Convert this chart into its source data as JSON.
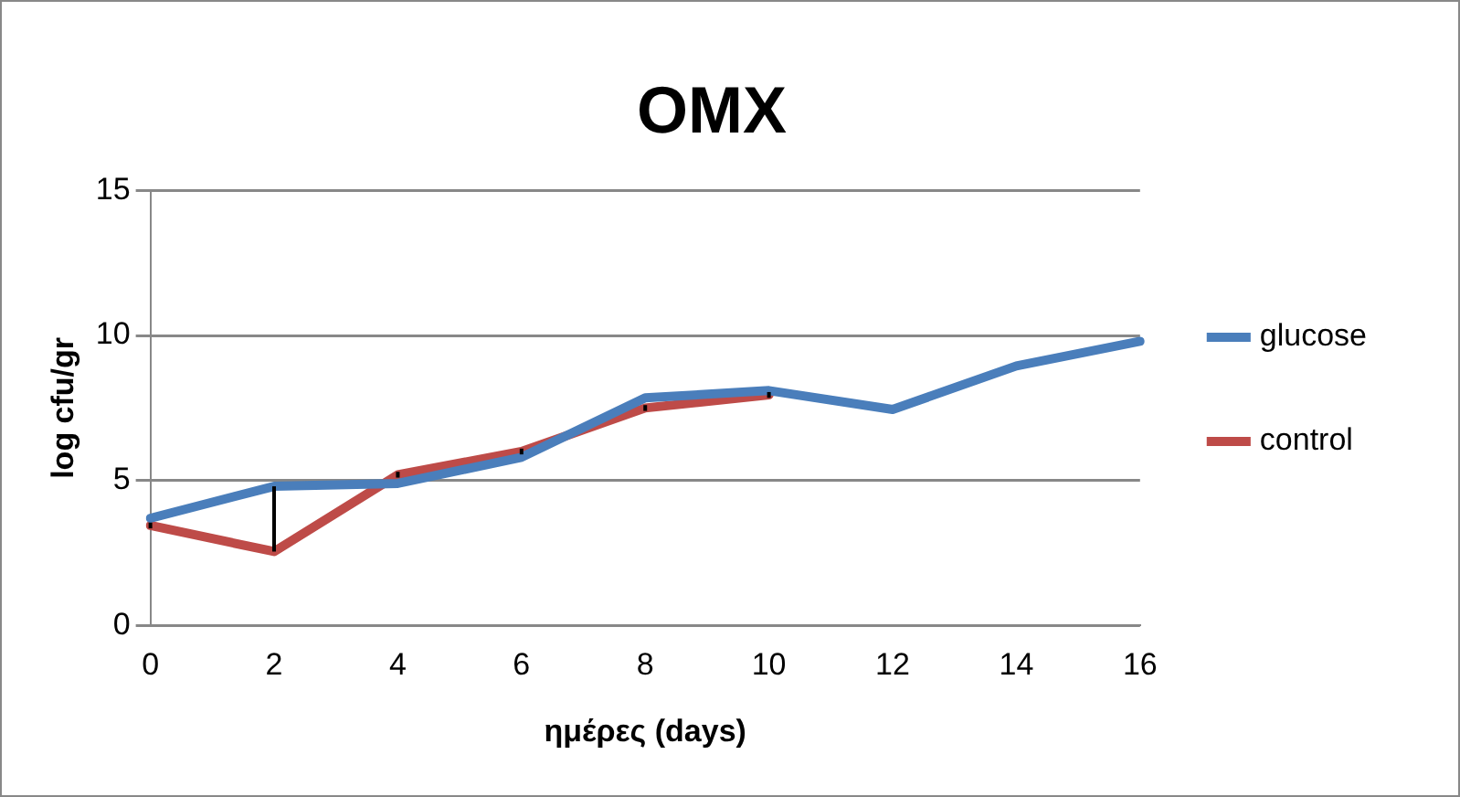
{
  "chart_data": {
    "type": "line",
    "title": "OMX",
    "xlabel": "ημέρες (days)",
    "ylabel": "log cfu/gr",
    "categories": [
      "0",
      "2",
      "4",
      "6",
      "8",
      "10",
      "12",
      "14",
      "16"
    ],
    "series": [
      {
        "name": "glucose",
        "color": "#4a7ebb",
        "values": [
          3.7,
          4.8,
          4.9,
          5.8,
          7.85,
          8.1,
          7.45,
          8.95,
          9.8
        ]
      },
      {
        "name": "control",
        "color": "#be4b48",
        "values": [
          3.45,
          2.55,
          5.2,
          6.0,
          7.5,
          7.95,
          null,
          null,
          null
        ],
        "errors": [
          0.1,
          [
            2.55,
            4.8
          ],
          0.1,
          0.1,
          0.1,
          0.1,
          null,
          null,
          null
        ]
      }
    ],
    "ylim": [
      0,
      15
    ],
    "yticks": [
      0,
      5,
      10,
      15
    ],
    "grid": "y",
    "legend": "right",
    "marker": "none",
    "line_style": "solid"
  }
}
